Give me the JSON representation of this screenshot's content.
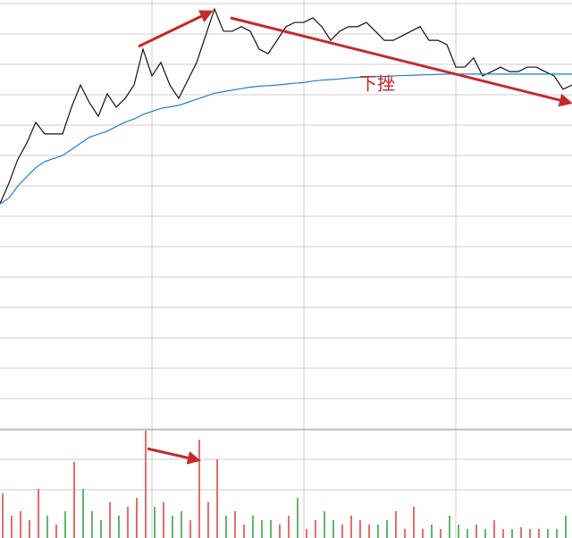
{
  "chart_data": {
    "type": "line",
    "annotation": "下挫",
    "x": [
      0,
      1,
      2,
      3,
      4,
      5,
      6,
      7,
      8,
      9,
      10,
      11,
      12,
      13,
      14,
      15,
      16,
      17,
      18,
      19,
      20,
      21,
      22,
      23,
      24,
      25,
      26,
      27,
      28,
      29,
      30,
      31,
      32,
      33,
      34,
      35,
      36,
      37,
      38,
      39,
      40,
      41,
      42,
      43,
      44,
      45,
      46,
      47,
      48,
      49,
      50,
      51,
      52,
      53,
      54,
      55,
      56,
      57,
      58,
      59,
      60,
      61,
      62,
      63,
      64
    ],
    "xlim": [
      0,
      64
    ],
    "xticks": [
      17,
      34,
      51
    ],
    "ylim": [
      0,
      14
    ],
    "yticks": [
      0,
      1,
      2,
      3,
      4,
      5,
      6,
      7,
      8,
      9,
      10,
      11,
      12,
      13,
      14
    ],
    "grid": true,
    "series": [
      {
        "name": "price",
        "color": "#111111",
        "values": [
          7.41,
          8.09,
          8.88,
          9.41,
          10.09,
          9.71,
          9.71,
          9.71,
          10.59,
          11.32,
          10.74,
          10.29,
          11.03,
          10.59,
          10.88,
          11.32,
          12.5,
          11.62,
          12.06,
          11.32,
          10.88,
          11.47,
          12.06,
          12.94,
          13.82,
          13.09,
          13.09,
          13.24,
          13.09,
          12.5,
          12.35,
          12.79,
          13.24,
          13.38,
          13.38,
          13.53,
          13.24,
          12.79,
          13.09,
          13.24,
          13.24,
          13.38,
          13.09,
          12.79,
          12.79,
          12.94,
          13.09,
          13.24,
          12.79,
          12.79,
          12.65,
          11.91,
          11.91,
          12.21,
          11.62,
          11.76,
          11.91,
          11.76,
          11.76,
          11.91,
          11.91,
          11.76,
          11.62,
          11.18,
          11.32
        ]
      },
      {
        "name": "average",
        "color": "#1f7fd6",
        "values": [
          7.41,
          7.6,
          8.0,
          8.3,
          8.6,
          8.8,
          8.9,
          9.0,
          9.2,
          9.4,
          9.6,
          9.7,
          9.8,
          9.95,
          10.1,
          10.2,
          10.35,
          10.45,
          10.55,
          10.6,
          10.65,
          10.75,
          10.85,
          10.95,
          11.05,
          11.1,
          11.15,
          11.2,
          11.25,
          11.28,
          11.3,
          11.32,
          11.35,
          11.38,
          11.4,
          11.45,
          11.48,
          11.5,
          11.52,
          11.55,
          11.57,
          11.58,
          11.6,
          11.6,
          11.62,
          11.63,
          11.64,
          11.65,
          11.66,
          11.67,
          11.68,
          11.68,
          11.68,
          11.68,
          11.68,
          11.68,
          11.68,
          11.68,
          11.68,
          11.68,
          11.68,
          11.68,
          11.68,
          11.68,
          11.68
        ]
      }
    ],
    "volume": {
      "ylim": [
        0,
        120
      ],
      "values": [
        50,
        25,
        30,
        20,
        55,
        25,
        15,
        30,
        85,
        55,
        30,
        20,
        40,
        25,
        35,
        45,
        120,
        35,
        40,
        25,
        30,
        20,
        110,
        40,
        88,
        25,
        30,
        15,
        25,
        20,
        20,
        15,
        25,
        45,
        10,
        20,
        30,
        20,
        15,
        25,
        20,
        15,
        15,
        20,
        30,
        10,
        35,
        10,
        15,
        10,
        25,
        15,
        10,
        15,
        10,
        20,
        10,
        10,
        12,
        10,
        10,
        10,
        10,
        25,
        15
      ],
      "colors": [
        "#e03c3c",
        "#e03c3c",
        "#e03c3c",
        "#e03c3c",
        "#e03c3c",
        "#2e9e3e",
        "#e03c3c",
        "#2e9e3e",
        "#e03c3c",
        "#2e9e3e",
        "#2e9e3e",
        "#2e9e3e",
        "#e03c3c",
        "#2e9e3e",
        "#e03c3c",
        "#e03c3c",
        "#e03c3c",
        "#2e9e3e",
        "#e03c3c",
        "#2e9e3e",
        "#2e9e3e",
        "#e03c3c",
        "#e03c3c",
        "#e03c3c",
        "#e03c3c",
        "#2e9e3e",
        "#e03c3c",
        "#e03c3c",
        "#2e9e3e",
        "#2e9e3e",
        "#2e9e3e",
        "#e03c3c",
        "#e03c3c",
        "#2e9e3e",
        "#e03c3c",
        "#e03c3c",
        "#2e9e3e",
        "#2e9e3e",
        "#e03c3c",
        "#e03c3c",
        "#e03c3c",
        "#e03c3c",
        "#2e9e3e",
        "#2e9e3e",
        "#e03c3c",
        "#e03c3c",
        "#e03c3c",
        "#e03c3c",
        "#2e9e3e",
        "#e03c3c",
        "#2e9e3e",
        "#2e9e3e",
        "#2e9e3e",
        "#e03c3c",
        "#2e9e3e",
        "#e03c3c",
        "#e03c3c",
        "#2e9e3e",
        "#e03c3c",
        "#e03c3c",
        "#e03c3c",
        "#2e9e3e",
        "#2e9e3e",
        "#2e9e3e",
        "#e03c3c"
      ]
    }
  }
}
